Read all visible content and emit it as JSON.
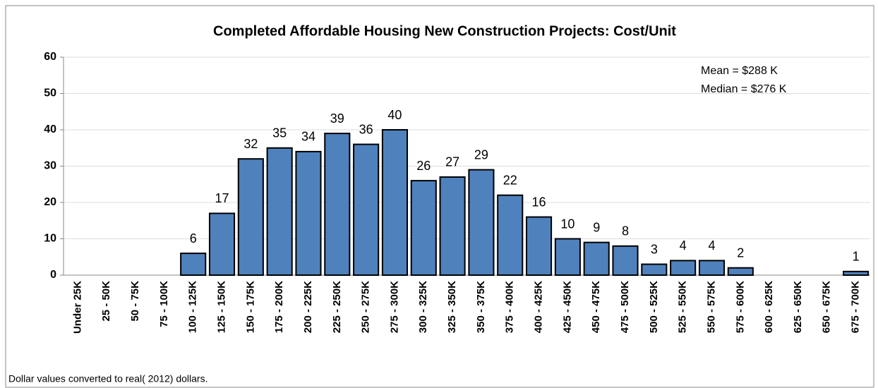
{
  "chart_data": {
    "type": "bar",
    "title": "Completed Affordable Housing New Construction Projects:  Cost/Unit",
    "categories": [
      "Under 25K",
      "25 - 50K",
      "50 - 75K",
      "75 - 100K",
      "100 - 125K",
      "125 - 150K",
      "150 - 175K",
      "175 - 200K",
      "200 - 225K",
      "225 - 250K",
      "250 - 275K",
      "275 - 300K",
      "300 - 325K",
      "325 - 350K",
      "350 - 375K",
      "375 - 400K",
      "400 - 425K",
      "425 - 450K",
      "450 - 475K",
      "475 - 500K",
      "500 - 525K",
      "525 - 550K",
      "550 - 575K",
      "575 - 600K",
      "600 - 625K",
      "625 - 650K",
      "650 - 675K",
      "675 - 700K"
    ],
    "values": [
      0,
      0,
      0,
      0,
      6,
      17,
      32,
      35,
      34,
      39,
      36,
      40,
      26,
      27,
      29,
      22,
      16,
      10,
      9,
      8,
      3,
      4,
      4,
      2,
      0,
      0,
      0,
      1
    ],
    "color": "#4f81bd",
    "ylim": [
      0,
      60
    ],
    "yticks": [
      0,
      10,
      20,
      30,
      40,
      50,
      60
    ],
    "grid": true,
    "annotations": [
      "Mean = $288 K",
      "Median = $276 K"
    ],
    "footnote": "Dollar values converted to real( 2012) dollars."
  }
}
